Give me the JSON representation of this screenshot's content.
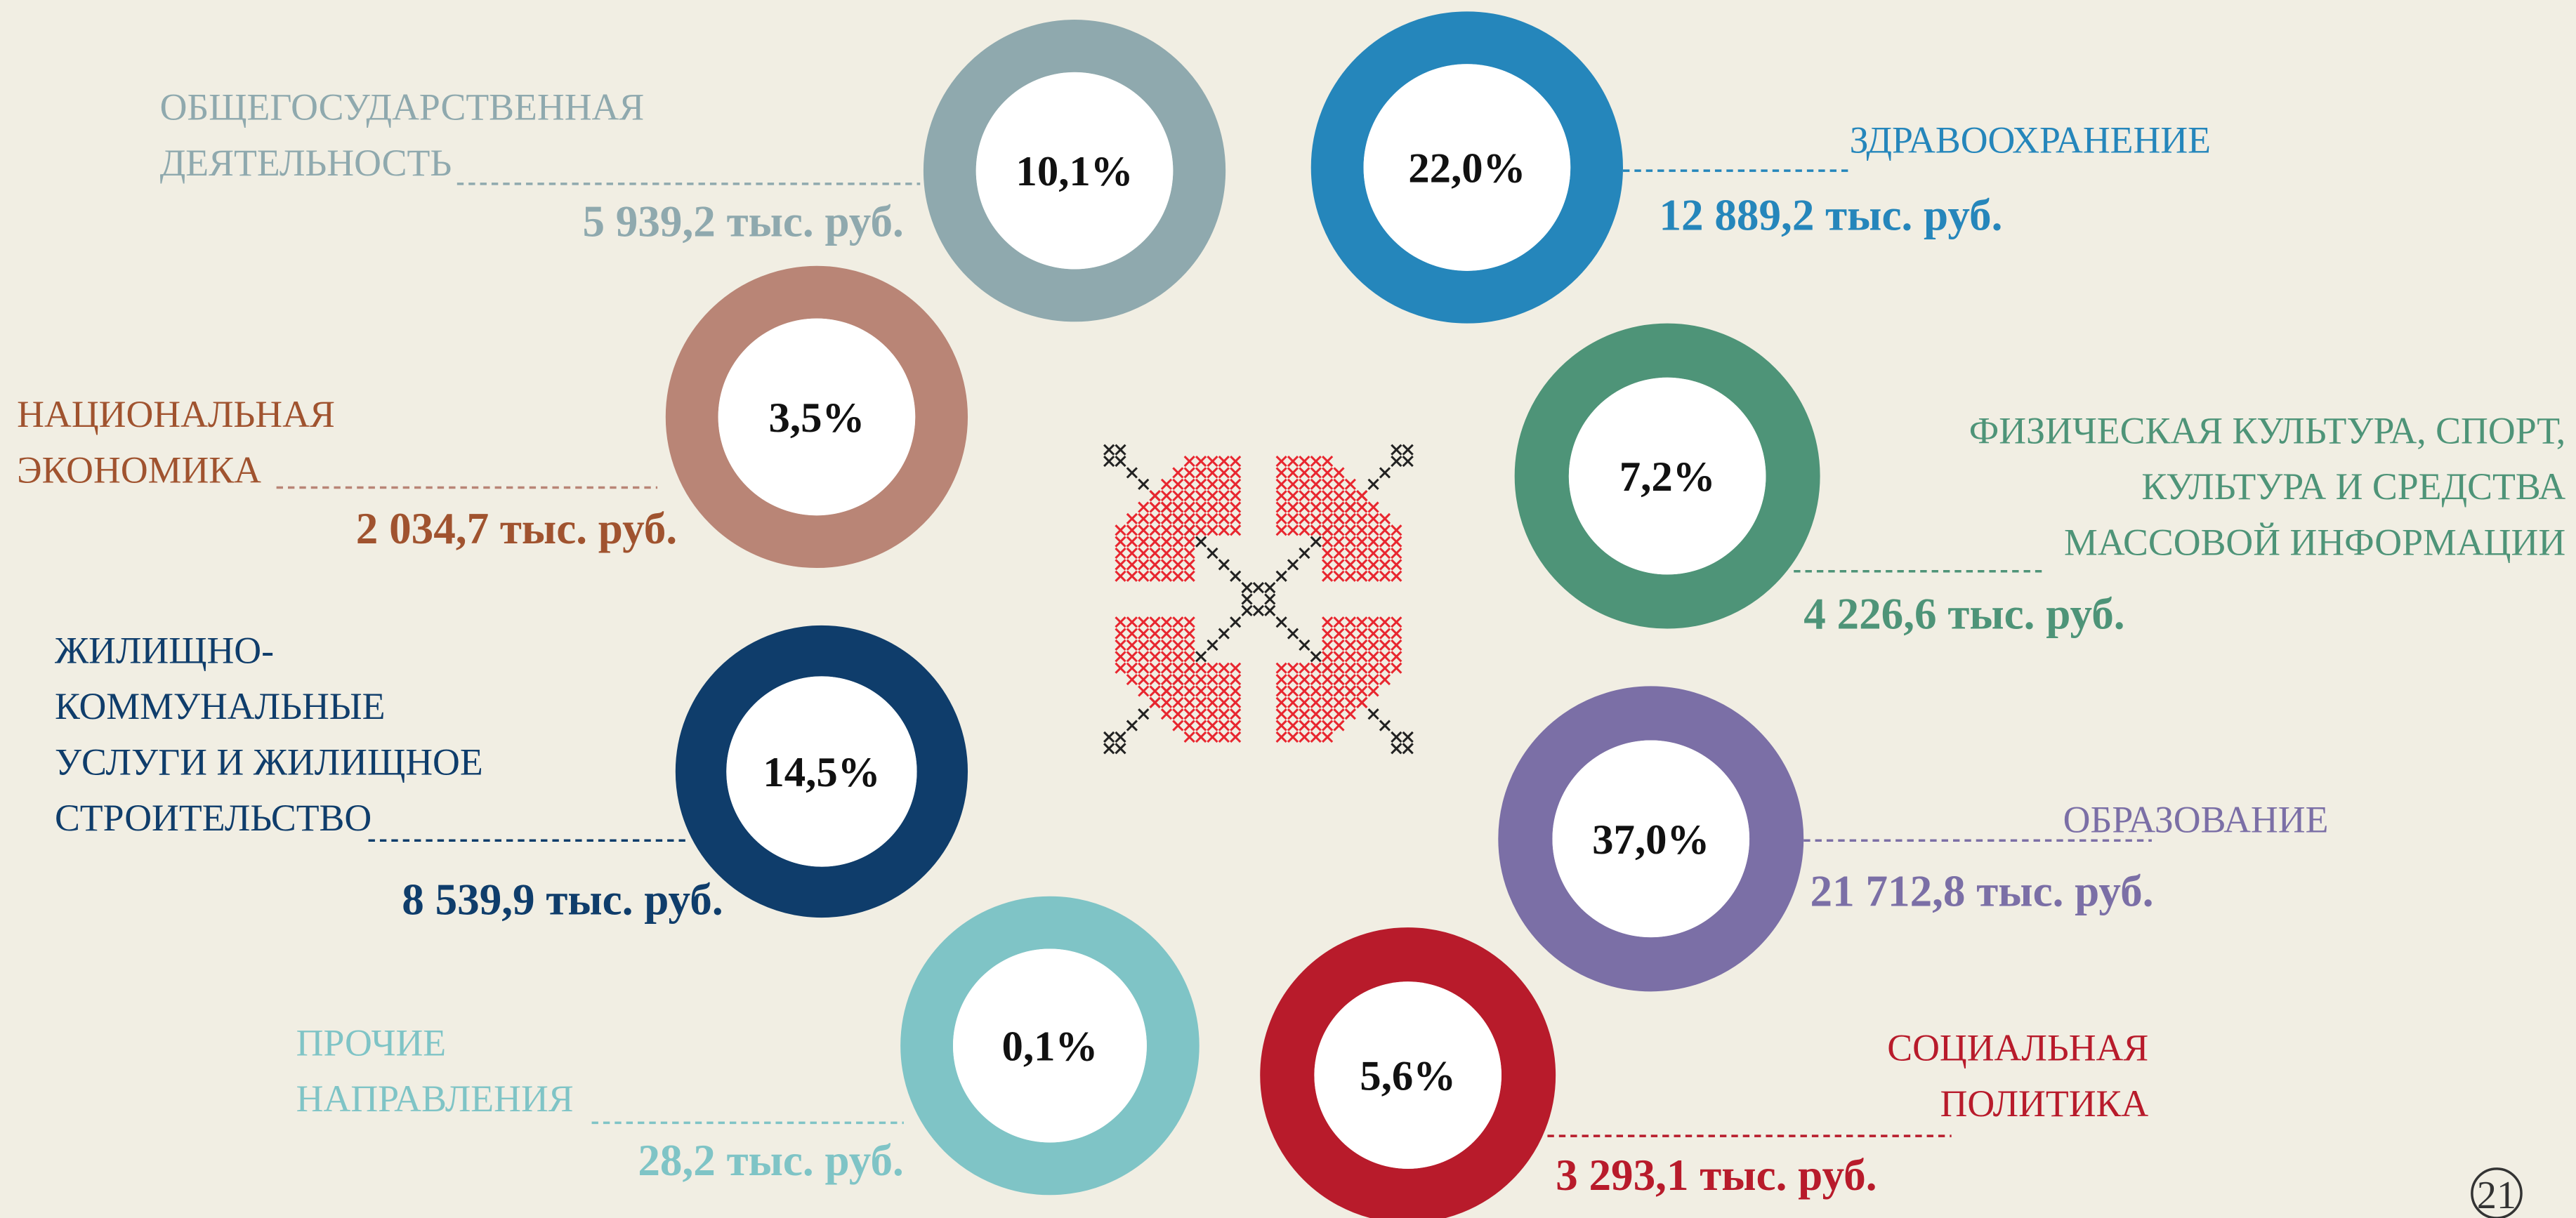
{
  "items": [
    {
      "label": [
        "ОБЩЕГОСУДАРСТВЕННАЯ",
        "ДЕЯТЕЛЬНОСТЬ"
      ],
      "percent": "10,1%",
      "amount": "5 939,2 тыс. руб."
    },
    {
      "label": [
        "ЗДРАВООХРАНЕНИЕ"
      ],
      "percent": "22,0%",
      "amount": "12 889,2 тыс. руб."
    },
    {
      "label": [
        "НАЦИОНАЛЬНАЯ",
        "ЭКОНОМИКА"
      ],
      "percent": "3,5%",
      "amount": "2 034,7 тыс. руб."
    },
    {
      "label": [
        "ФИЗИЧЕСКАЯ КУЛЬТУРА, СПОРТ,",
        "КУЛЬТУРА И СРЕДСТВА",
        "МАССОВОЙ ИНФОРМАЦИИ"
      ],
      "percent": "7,2%",
      "amount": "4 226,6 тыс. руб."
    },
    {
      "label": [
        "ЖИЛИЩНО-",
        "КОММУНАЛЬНЫЕ",
        "УСЛУГИ И ЖИЛИЩНОЕ",
        "СТРОИТЕЛЬСТВО"
      ],
      "percent": "14,5%",
      "amount": "8 539,9 тыс. руб."
    },
    {
      "label": [
        "ОБРАЗОВАНИЕ"
      ],
      "percent": "37,0%",
      "amount": "21 712,8 тыс. руб."
    },
    {
      "label": [
        "ПРОЧИЕ",
        "НАПРАВЛЕНИЯ"
      ],
      "percent": "0,1%",
      "amount": "28,2 тыс. руб."
    },
    {
      "label": [
        "СОЦИАЛЬНАЯ",
        "ПОЛИТИКА"
      ],
      "percent": "5,6%",
      "amount": "3 293,1 тыс. руб."
    }
  ],
  "page_number": "21"
}
